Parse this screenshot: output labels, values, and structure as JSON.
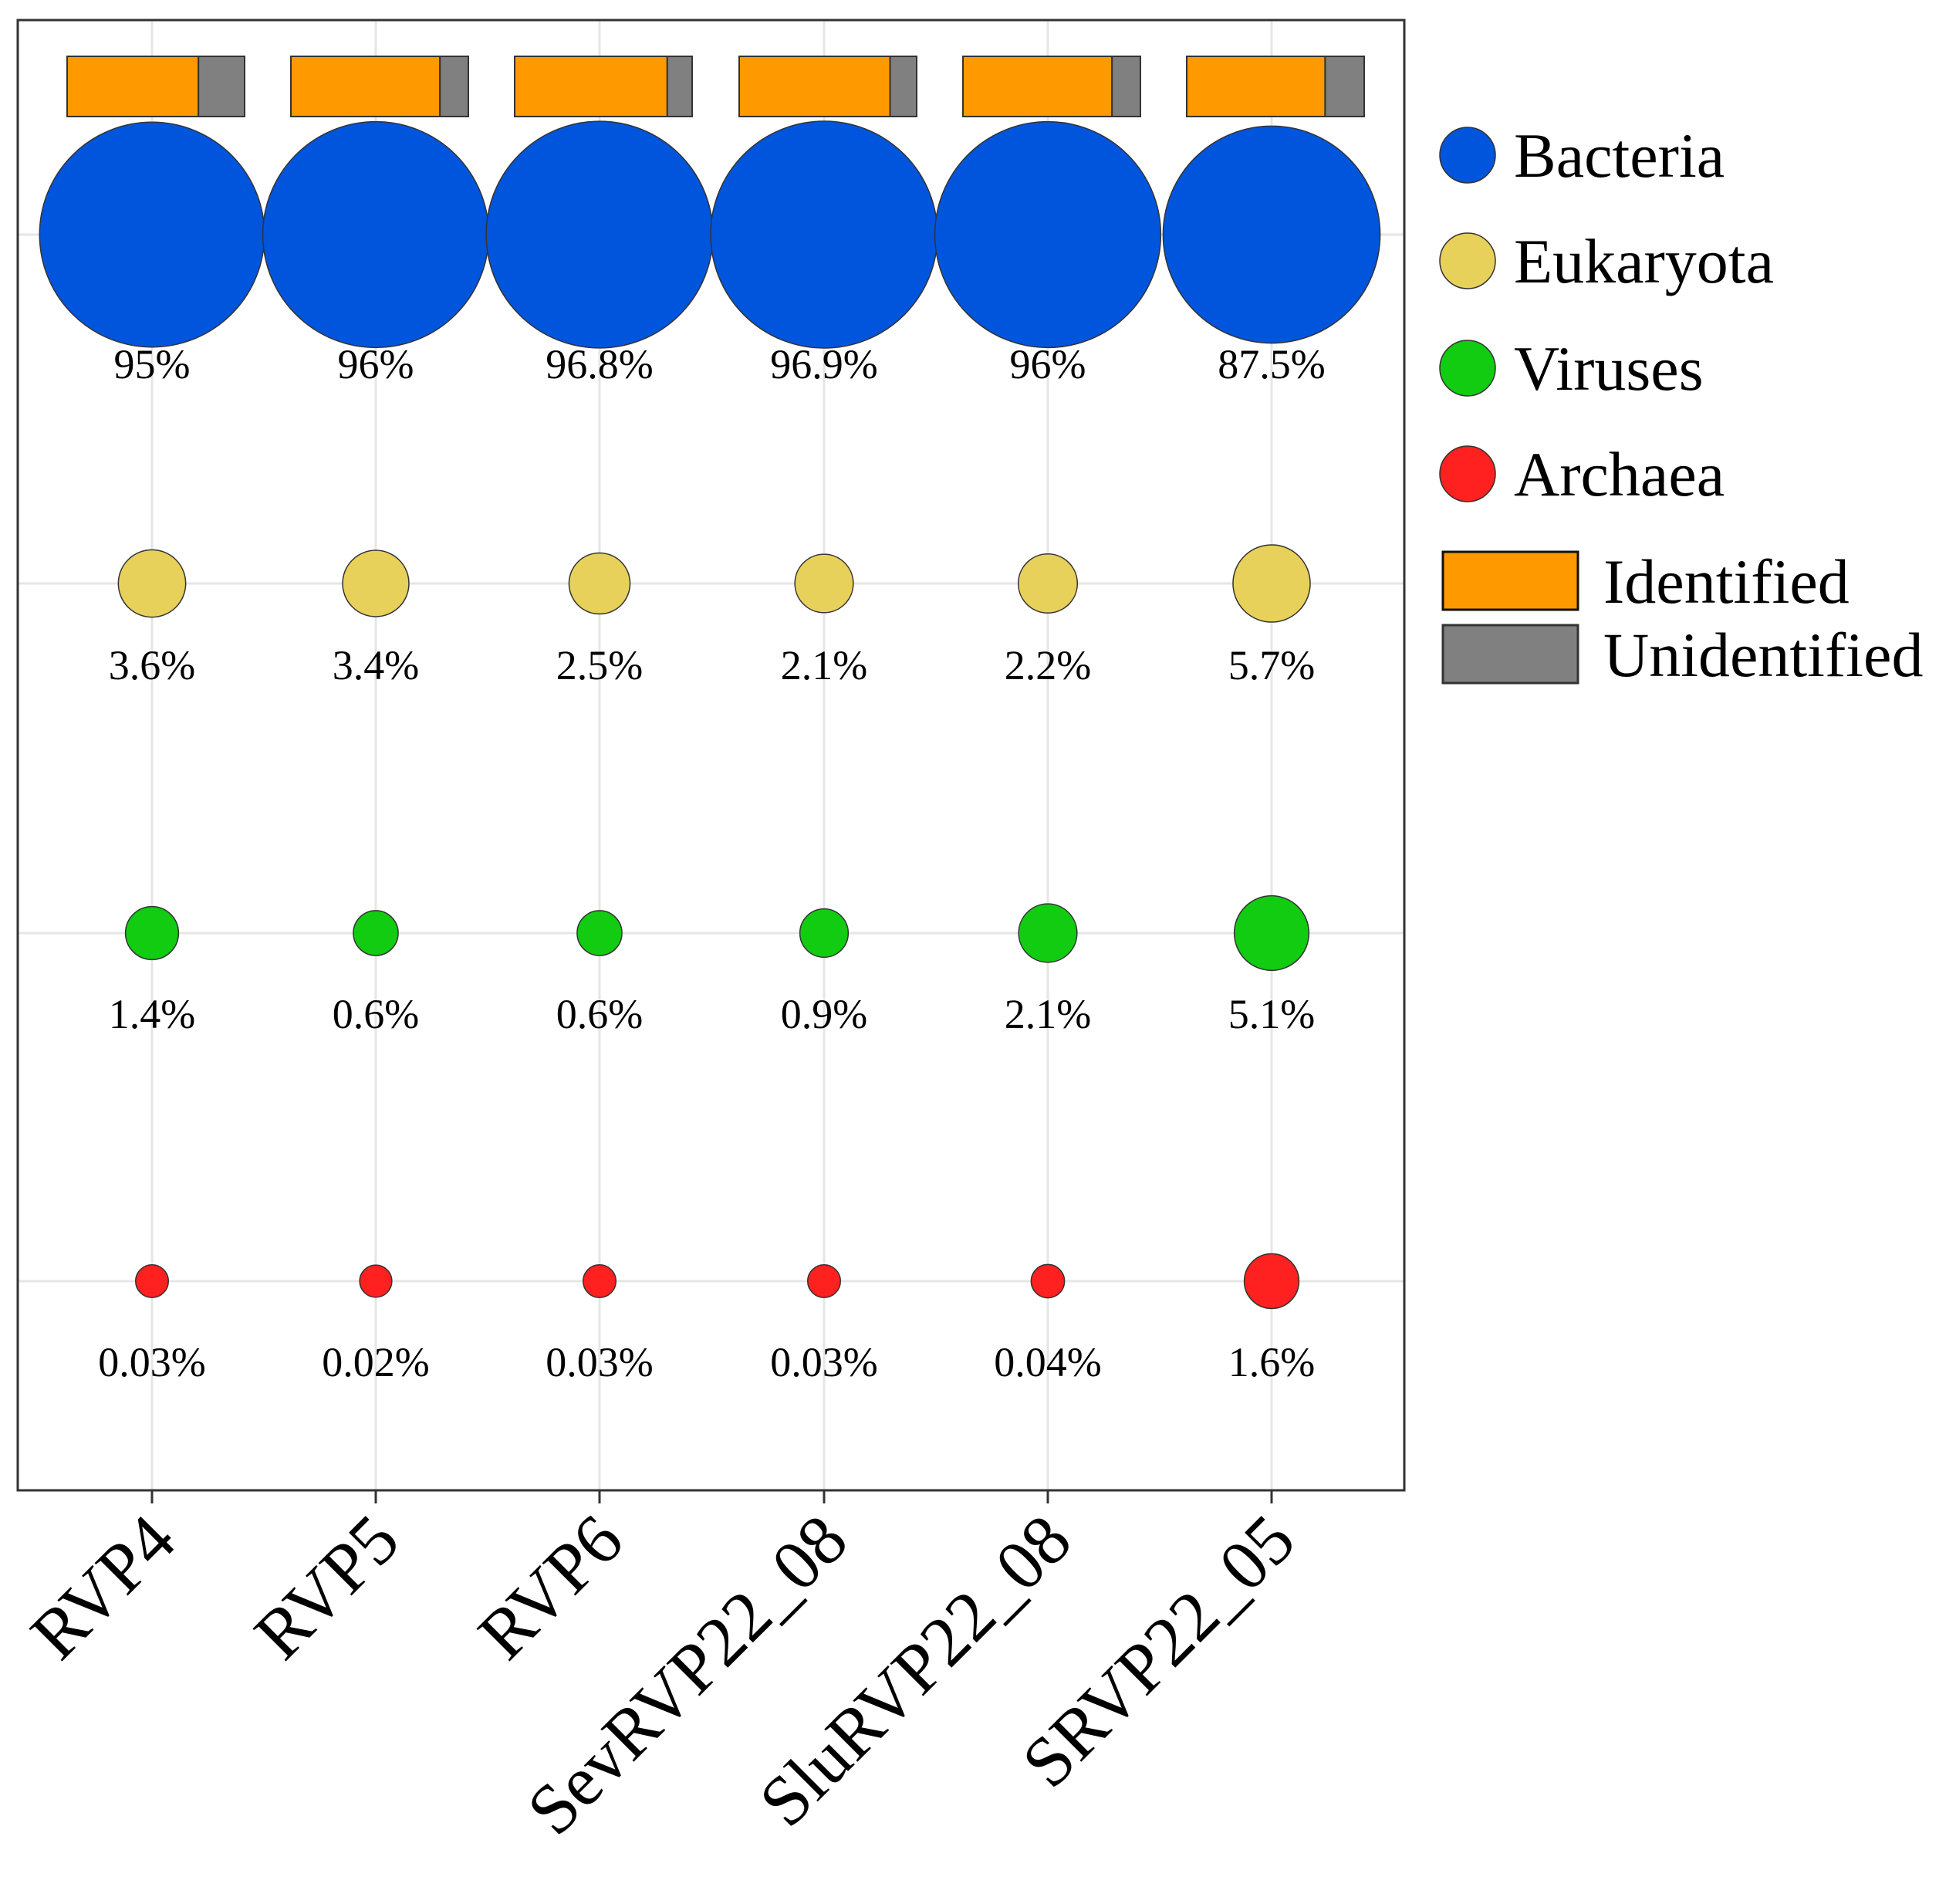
{
  "chart_data": {
    "type": "bubble",
    "title": "",
    "xlabel": "",
    "ylabel": "",
    "categories": [
      "RVP4",
      "RVP5",
      "RVP6",
      "SevRVP22_08",
      "SluRVP22_08",
      "SRVP22_05"
    ],
    "domains": [
      {
        "name": "Bacteria",
        "color": "#0055DD",
        "labels": [
          "95%",
          "96%",
          "96.8%",
          "96.9%",
          "96%",
          "87.5%"
        ],
        "values": [
          95,
          96,
          96.8,
          96.9,
          96,
          87.5
        ]
      },
      {
        "name": "Eukaryota",
        "color": "#E8D15A",
        "labels": [
          "3.6%",
          "3.4%",
          "2.5%",
          "2.1%",
          "2.2%",
          "5.7%"
        ],
        "values": [
          3.6,
          3.4,
          2.5,
          2.1,
          2.2,
          5.7
        ]
      },
      {
        "name": "Viruses",
        "color": "#11CC11",
        "labels": [
          "1.4%",
          "0.6%",
          "0.6%",
          "0.9%",
          "2.1%",
          "5.1%"
        ],
        "values": [
          1.4,
          0.6,
          0.6,
          0.9,
          2.1,
          5.1
        ]
      },
      {
        "name": "Archaea",
        "color": "#FF2020",
        "labels": [
          "0.03%",
          "0.02%",
          "0.03%",
          "0.03%",
          "0.04%",
          "1.6%"
        ],
        "values": [
          0.03,
          0.02,
          0.03,
          0.03,
          0.04,
          1.6
        ]
      }
    ],
    "identified_fraction": [
      0.74,
      0.84,
      0.86,
      0.85,
      0.84,
      0.78
    ],
    "bar_legend": [
      {
        "name": "Identified",
        "color": "#FF9900"
      },
      {
        "name": "Unidentified",
        "color": "#808080"
      }
    ],
    "grid": true,
    "legend_position": "right"
  }
}
